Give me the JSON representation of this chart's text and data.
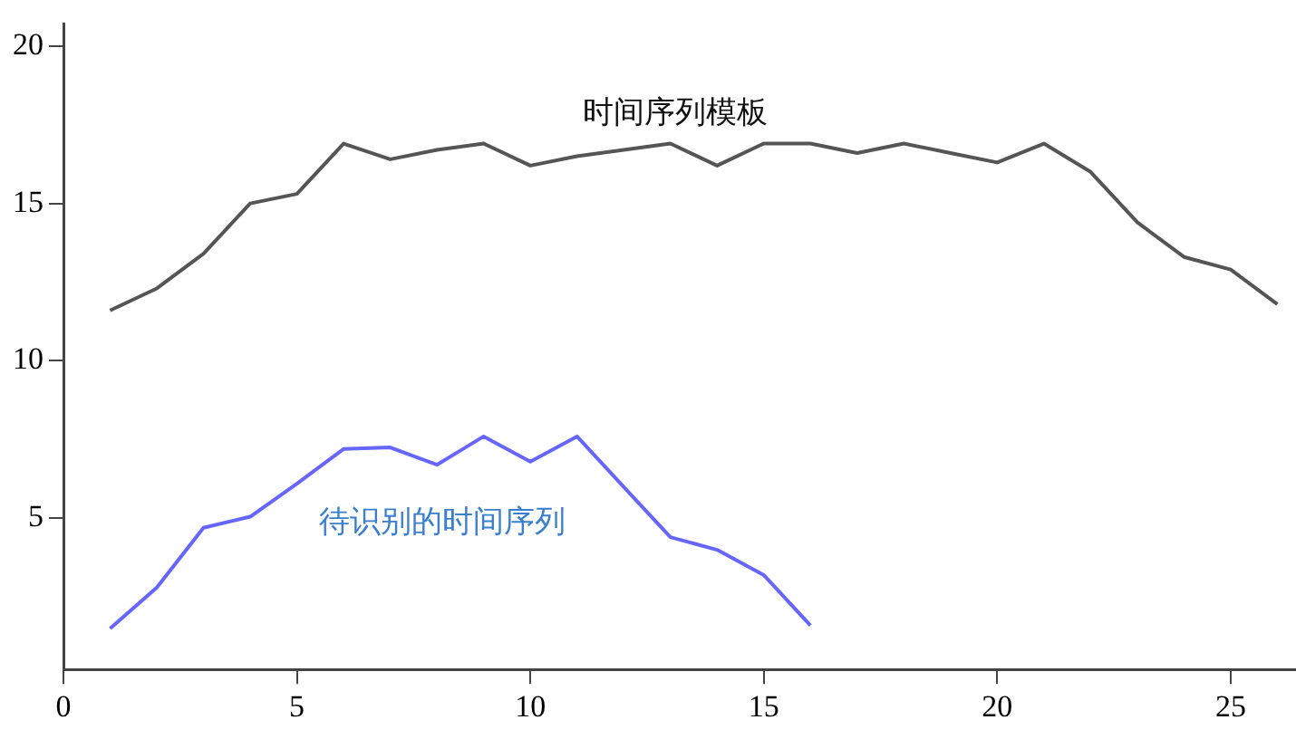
{
  "chart_data": {
    "type": "line",
    "x": [
      1,
      2,
      3,
      4,
      5,
      6,
      7,
      8,
      9,
      10,
      11,
      12,
      13,
      14,
      15,
      16,
      17,
      18,
      19,
      20,
      21,
      22,
      23,
      24,
      25,
      26
    ],
    "series": [
      {
        "name": "时间序列模板",
        "color": "#555555",
        "values": [
          11.6,
          12.3,
          13.4,
          15.0,
          15.3,
          16.9,
          16.4,
          16.7,
          16.9,
          16.2,
          16.5,
          16.7,
          16.9,
          16.2,
          16.9,
          16.9,
          16.6,
          16.9,
          16.6,
          16.3,
          16.9,
          16.0,
          14.4,
          13.3,
          12.9,
          11.8
        ]
      },
      {
        "name": "待识别的时间序列",
        "color": "#6666ff",
        "x": [
          1,
          2,
          3,
          4,
          5,
          6,
          7,
          8,
          9,
          10,
          11,
          12,
          13,
          14,
          15,
          16
        ],
        "values": [
          1.5,
          2.8,
          4.7,
          5.05,
          6.1,
          7.2,
          7.25,
          6.7,
          7.6,
          6.8,
          7.6,
          6.0,
          4.4,
          4.0,
          3.2,
          1.6
        ]
      }
    ],
    "xlim": [
      0,
      26.4
    ],
    "ylim": [
      0.2,
      20.7
    ],
    "xticks": [
      0,
      5,
      10,
      15,
      20,
      25
    ],
    "yticks": [
      5,
      10,
      15,
      20
    ],
    "grid": false,
    "legend": false,
    "marker": "none",
    "line_style": "solid"
  }
}
